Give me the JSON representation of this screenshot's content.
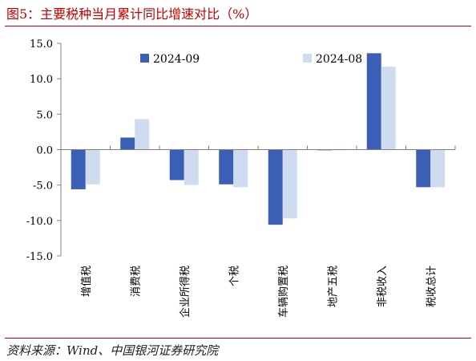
{
  "title": "图5：主要税种当月累计同比增速对比（%）",
  "source": "资料来源：Wind、中国银河证券研究院",
  "chart_data": {
    "type": "bar",
    "categories": [
      "增值税",
      "消费税",
      "企业所得税",
      "个税",
      "车辆购置税",
      "地产五税",
      "非税收入",
      "税收总计"
    ],
    "series": [
      {
        "name": "2024-09",
        "color": "#3a5fb5",
        "values": [
          -5.6,
          1.7,
          -4.3,
          -4.9,
          -10.6,
          -0.1,
          13.6,
          -5.3
        ]
      },
      {
        "name": "2024-08",
        "color": "#cfdcf0",
        "values": [
          -4.9,
          4.3,
          -5.0,
          -5.3,
          -9.7,
          -0.1,
          11.7,
          -5.3
        ]
      }
    ],
    "ylim": [
      -15,
      15
    ],
    "yticks": [
      "15.0",
      "10.0",
      "5.0",
      "0.0",
      "-5.0",
      "-10.0",
      "-15.0"
    ],
    "xlabel": "",
    "ylabel": "",
    "legend_position": "top"
  }
}
